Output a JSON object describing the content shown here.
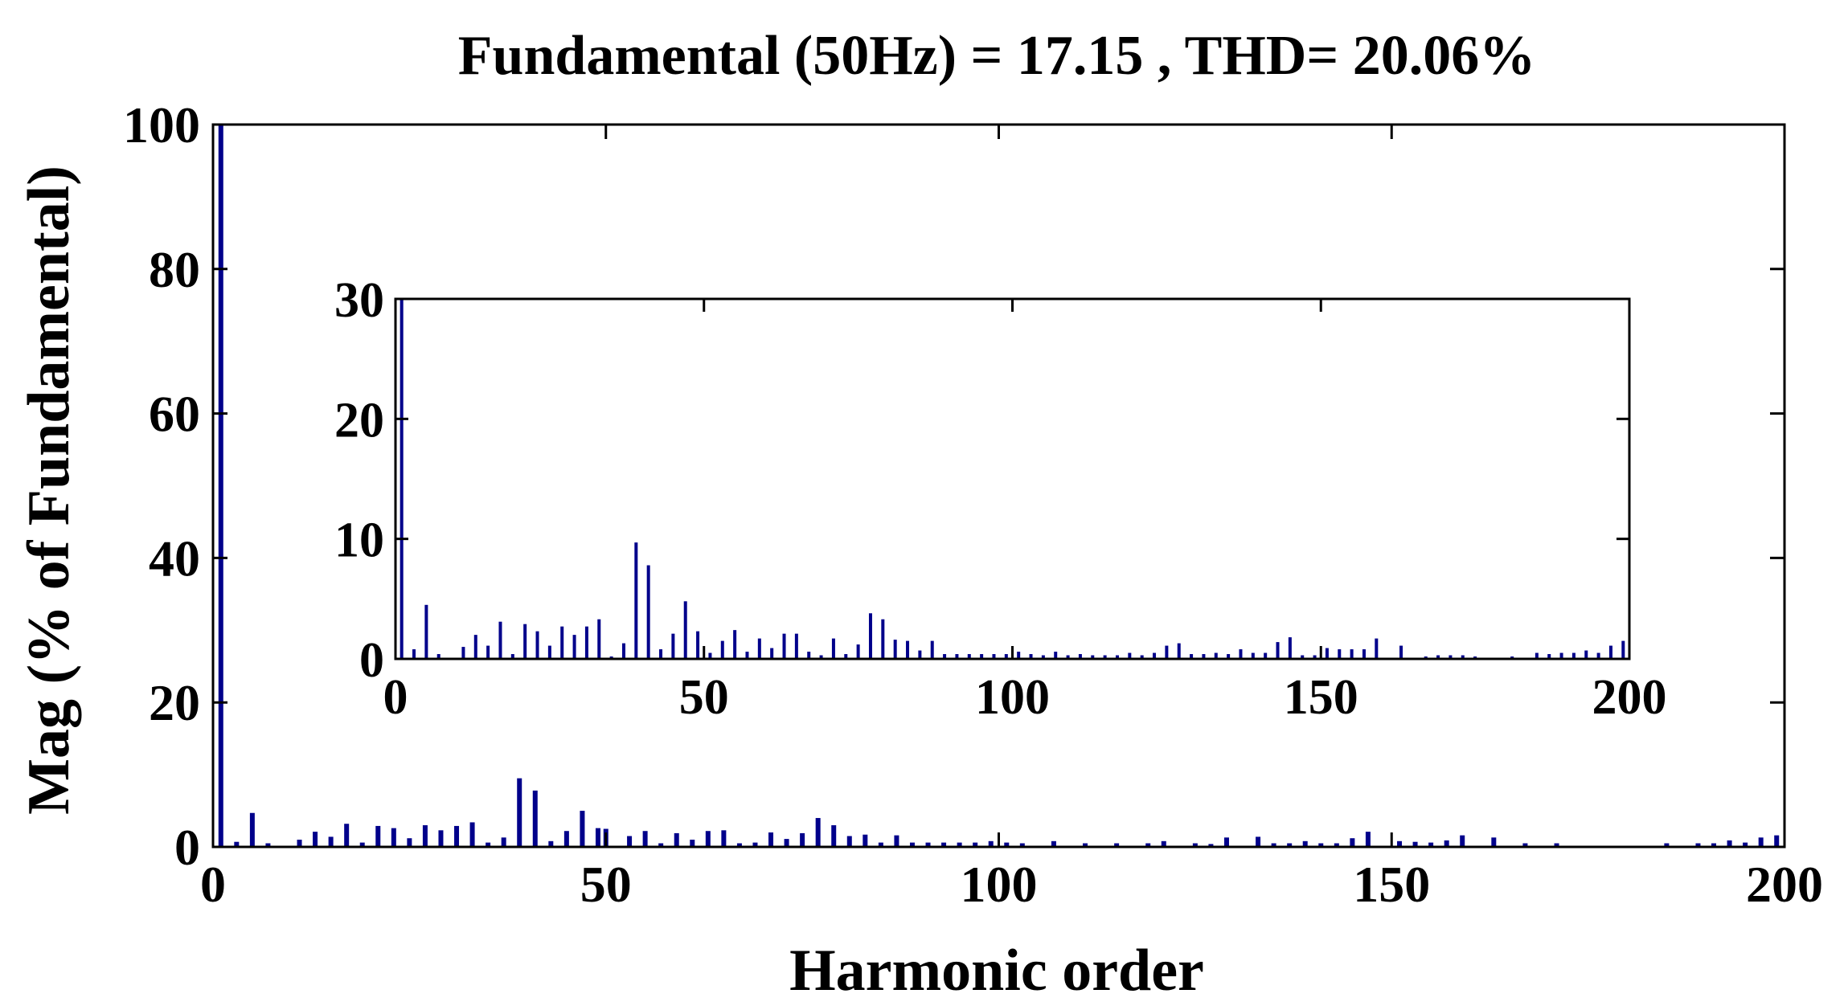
{
  "chart_data": {
    "type": "bar",
    "title": "Fundamental (50Hz) = 17.15 , THD= 20.06%",
    "xlabel": "Harmonic order",
    "ylabel": "Mag (% of Fundamental)",
    "xlim": [
      0,
      200
    ],
    "ylim": [
      0,
      100
    ],
    "xticks": [
      "0",
      "50",
      "100",
      "150",
      "200"
    ],
    "yticks": [
      "0",
      "20",
      "40",
      "60",
      "80",
      "100"
    ],
    "grid": false,
    "bar_color": "#00008b",
    "harmonics": [
      1,
      3,
      5,
      7,
      11,
      13,
      15,
      17,
      19,
      21,
      23,
      25,
      27,
      29,
      31,
      33,
      35,
      37,
      39,
      41,
      43,
      45,
      47,
      49,
      50,
      53,
      55,
      57,
      59,
      61,
      63,
      65,
      67,
      69,
      71,
      73,
      75,
      77,
      79,
      81,
      83,
      85,
      87,
      89,
      91,
      93,
      95,
      97,
      99,
      101,
      103,
      107,
      111,
      115,
      119,
      121,
      125,
      127,
      129,
      133,
      135,
      137,
      139,
      141,
      143,
      145,
      147,
      151,
      153,
      155,
      157,
      159,
      163,
      167,
      171,
      185,
      189,
      191,
      193,
      195,
      197,
      199
    ],
    "values": [
      100,
      0.7,
      4.7,
      0.5,
      1.0,
      2.1,
      1.4,
      3.2,
      0.6,
      2.9,
      2.6,
      1.2,
      3.0,
      2.3,
      2.9,
      3.4,
      0.6,
      1.3,
      9.5,
      7.8,
      0.8,
      2.2,
      5.0,
      2.6,
      2.5,
      1.5,
      2.2,
      0.5,
      1.9,
      1.0,
      2.2,
      2.3,
      0.5,
      0.6,
      2.0,
      1.1,
      1.9,
      4.0,
      3.0,
      1.5,
      1.7,
      0.6,
      1.6,
      0.6,
      0.6,
      0.6,
      0.6,
      0.6,
      0.8,
      0.6,
      0.5,
      0.8,
      0.5,
      0.5,
      0.5,
      0.8,
      0.5,
      0.4,
      1.3,
      1.4,
      0.5,
      0.5,
      0.8,
      0.5,
      0.5,
      1.2,
      2.1,
      0.8,
      0.7,
      0.6,
      0.9,
      1.6,
      1.3,
      0.5,
      0.5,
      0.5,
      0.5,
      0.5,
      0.9,
      0.6,
      1.3,
      1.6
    ],
    "inset": {
      "xlim": [
        0,
        200
      ],
      "ylim": [
        0,
        30
      ],
      "xticks": [
        "0",
        "50",
        "100",
        "150",
        "200"
      ],
      "yticks": [
        "0",
        "10",
        "20",
        "30"
      ],
      "harmonics": [
        1,
        3,
        5,
        7,
        11,
        13,
        15,
        17,
        19,
        21,
        23,
        25,
        27,
        29,
        31,
        33,
        35,
        37,
        39,
        41,
        43,
        45,
        47,
        49,
        51,
        53,
        55,
        57,
        59,
        61,
        63,
        65,
        67,
        69,
        71,
        73,
        75,
        77,
        79,
        81,
        83,
        85,
        87,
        89,
        91,
        93,
        95,
        97,
        99,
        101,
        103,
        105,
        107,
        109,
        111,
        113,
        115,
        117,
        119,
        121,
        123,
        125,
        127,
        129,
        131,
        133,
        135,
        137,
        139,
        141,
        143,
        145,
        147,
        149,
        151,
        153,
        155,
        157,
        159,
        163,
        167,
        169,
        171,
        173,
        175,
        181,
        185,
        187,
        189,
        191,
        193,
        195,
        197,
        199
      ],
      "values": [
        30,
        0.8,
        4.5,
        0.4,
        1.0,
        2.0,
        1.1,
        3.1,
        0.4,
        2.9,
        2.3,
        1.1,
        2.7,
        2.0,
        2.7,
        3.3,
        0.2,
        1.3,
        9.7,
        7.8,
        0.8,
        2.1,
        4.8,
        2.3,
        0.5,
        1.5,
        2.4,
        0.6,
        1.7,
        0.9,
        2.1,
        2.1,
        0.6,
        0.3,
        1.7,
        0.4,
        1.2,
        3.8,
        3.3,
        1.6,
        1.5,
        0.7,
        1.5,
        0.4,
        0.4,
        0.4,
        0.4,
        0.4,
        0.4,
        0.6,
        0.4,
        0.3,
        0.6,
        0.3,
        0.4,
        0.3,
        0.3,
        0.3,
        0.5,
        0.3,
        0.5,
        1.1,
        1.3,
        0.4,
        0.4,
        0.5,
        0.4,
        0.8,
        0.5,
        0.5,
        1.4,
        1.8,
        0.3,
        0.3,
        0.9,
        0.8,
        0.8,
        0.8,
        1.7,
        1.1,
        0.2,
        0.3,
        0.3,
        0.3,
        0.2,
        0.2,
        0.5,
        0.4,
        0.5,
        0.5,
        0.7,
        0.5,
        1.1,
        1.5
      ]
    }
  }
}
